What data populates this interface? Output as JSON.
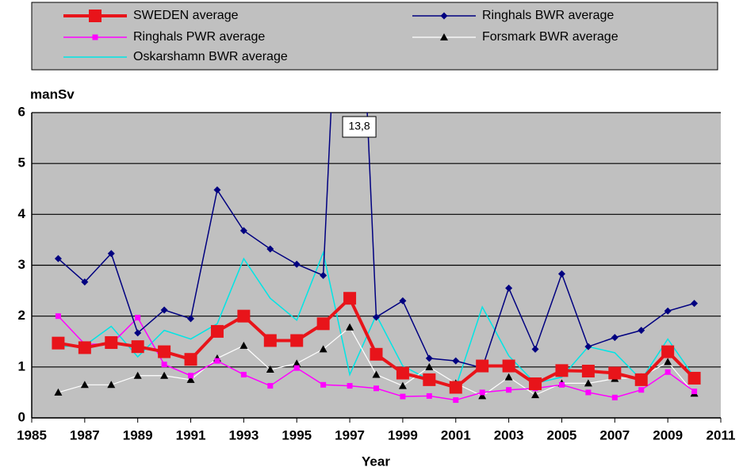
{
  "chart_data": {
    "type": "line",
    "y_label": "manSv",
    "x_label": "Year",
    "x": [
      1986,
      1987,
      1988,
      1989,
      1990,
      1991,
      1992,
      1993,
      1994,
      1995,
      1996,
      1997,
      1998,
      1999,
      2000,
      2001,
      2002,
      2003,
      2004,
      2005,
      2006,
      2007,
      2008,
      2009,
      2010
    ],
    "xlim": [
      1985,
      2011
    ],
    "xticks": [
      1985,
      1987,
      1989,
      1991,
      1993,
      1995,
      1997,
      1999,
      2001,
      2003,
      2005,
      2007,
      2009,
      2011
    ],
    "ylim": [
      0,
      6
    ],
    "yticks": [
      0,
      1,
      2,
      3,
      4,
      5,
      6
    ],
    "grid": true,
    "series": [
      {
        "name": "SWEDEN average",
        "color": "#e8141a",
        "marker": "square",
        "values": [
          1.47,
          1.38,
          1.48,
          1.4,
          1.3,
          1.15,
          1.7,
          2.0,
          1.52,
          1.52,
          1.85,
          2.35,
          1.25,
          0.88,
          0.75,
          0.6,
          1.02,
          1.02,
          0.67,
          0.93,
          0.92,
          0.88,
          0.75,
          1.3,
          0.78
        ]
      },
      {
        "name": "Ringhals BWR average",
        "color": "#000080",
        "marker": "diamond",
        "values": [
          3.13,
          2.67,
          3.23,
          1.67,
          2.12,
          1.95,
          4.48,
          3.68,
          3.32,
          3.02,
          2.8,
          13.8,
          1.98,
          2.3,
          1.17,
          1.12,
          0.98,
          2.55,
          1.35,
          2.83,
          1.4,
          1.58,
          1.72,
          2.1,
          2.25
        ],
        "value_labels": [
          null,
          null,
          null,
          null,
          null,
          null,
          null,
          null,
          null,
          null,
          null,
          "13,8",
          null,
          null,
          null,
          null,
          null,
          null,
          null,
          null,
          null,
          null,
          null,
          null,
          null
        ]
      },
      {
        "name": "Ringhals PWR average",
        "color": "#ff00ff",
        "marker": "square",
        "values": [
          2.0,
          1.45,
          1.45,
          1.97,
          1.05,
          0.83,
          1.12,
          0.85,
          0.63,
          0.98,
          0.65,
          0.63,
          0.58,
          0.42,
          0.43,
          0.35,
          0.5,
          0.55,
          0.58,
          0.65,
          0.5,
          0.4,
          0.55,
          0.9,
          0.52
        ]
      },
      {
        "name": "Forsmark BWR average",
        "color": "#ffffff",
        "marker": "triangle",
        "values": [
          0.5,
          0.65,
          0.65,
          0.83,
          0.83,
          0.75,
          1.17,
          1.42,
          0.95,
          1.07,
          1.35,
          1.78,
          0.85,
          0.63,
          1.0,
          0.68,
          0.43,
          0.8,
          0.45,
          0.68,
          0.68,
          0.77,
          0.8,
          1.1,
          0.48
        ]
      },
      {
        "name": "Oskarshamn BWR average",
        "color": "#00e5e5",
        "marker": "none",
        "values": [
          1.4,
          1.42,
          1.8,
          1.2,
          1.72,
          1.55,
          1.85,
          3.13,
          2.35,
          1.92,
          3.25,
          0.85,
          2.02,
          1.02,
          0.75,
          0.6,
          2.18,
          1.22,
          0.68,
          0.8,
          1.4,
          1.28,
          0.75,
          1.55,
          0.8
        ]
      }
    ]
  }
}
